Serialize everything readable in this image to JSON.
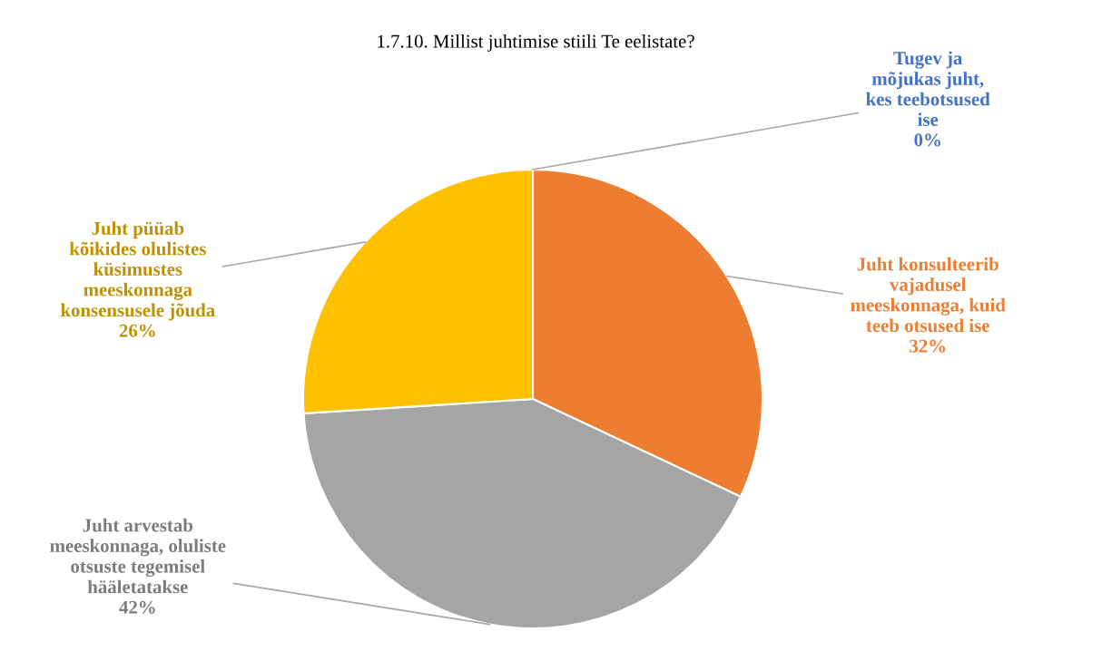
{
  "chart_data": {
    "type": "pie",
    "title": "1.7.10. Millist juhtimise stiili Te eelistate?",
    "categories": [
      "Tugev ja\nmõjukas juht,\nkes teebotsused\nise",
      "Juht konsulteerib\nvajadusel\nmeeskonnaga, kuid\nteeb otsused ise",
      "Juht arvestab\nmeeskonnaga, oluliste\notsuste tegemisel\nhääletatakse",
      "Juht püüab\nkõikides olulistes\nküsimustes\nmeeskonnaga\nkonsensusele jõuda"
    ],
    "values": [
      0,
      32,
      42,
      26
    ],
    "value_labels": [
      "0%",
      "32%",
      "42%",
      "26%"
    ],
    "colors": [
      "#4472c4",
      "#ed7d31",
      "#a5a5a5",
      "#ffc000"
    ]
  }
}
